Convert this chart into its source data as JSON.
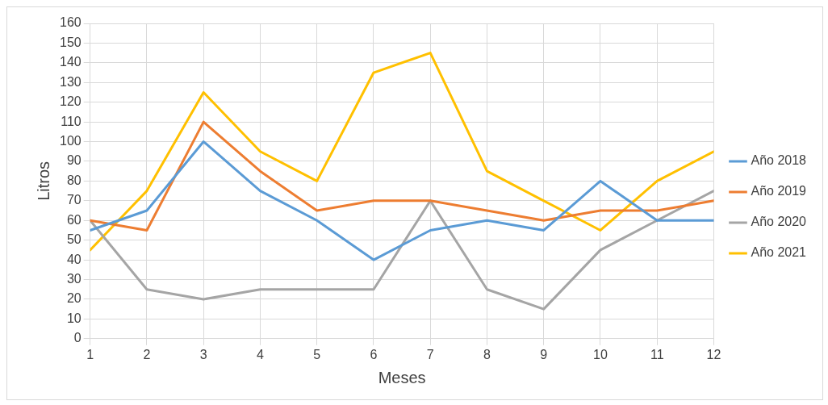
{
  "chart_data": {
    "type": "line",
    "xlabel": "Meses",
    "ylabel": "Litros",
    "x": [
      1,
      2,
      3,
      4,
      5,
      6,
      7,
      8,
      9,
      10,
      11,
      12
    ],
    "series": [
      {
        "name": "Año 2018",
        "color": "#5b9bd5",
        "values": [
          55,
          65,
          100,
          75,
          60,
          40,
          55,
          60,
          55,
          80,
          60,
          60
        ]
      },
      {
        "name": "Año 2019",
        "color": "#ed7d31",
        "values": [
          60,
          55,
          110,
          85,
          65,
          70,
          70,
          65,
          60,
          65,
          65,
          70
        ]
      },
      {
        "name": "Año 2020",
        "color": "#a5a5a5",
        "values": [
          60,
          25,
          20,
          25,
          25,
          25,
          70,
          25,
          15,
          45,
          60,
          75
        ]
      },
      {
        "name": "Año 2021",
        "color": "#ffc000",
        "values": [
          45,
          75,
          125,
          95,
          80,
          135,
          145,
          85,
          70,
          55,
          80,
          95
        ]
      }
    ],
    "xlim": [
      1,
      12
    ],
    "xticks": [
      1,
      2,
      3,
      4,
      5,
      6,
      7,
      8,
      9,
      10,
      11,
      12
    ],
    "ylim": [
      0,
      160
    ],
    "yticks": [
      0,
      10,
      20,
      30,
      40,
      50,
      60,
      70,
      80,
      90,
      100,
      110,
      120,
      130,
      140,
      150,
      160
    ],
    "grid": true,
    "legend": "right",
    "marker": "none",
    "line_style": "solid"
  }
}
